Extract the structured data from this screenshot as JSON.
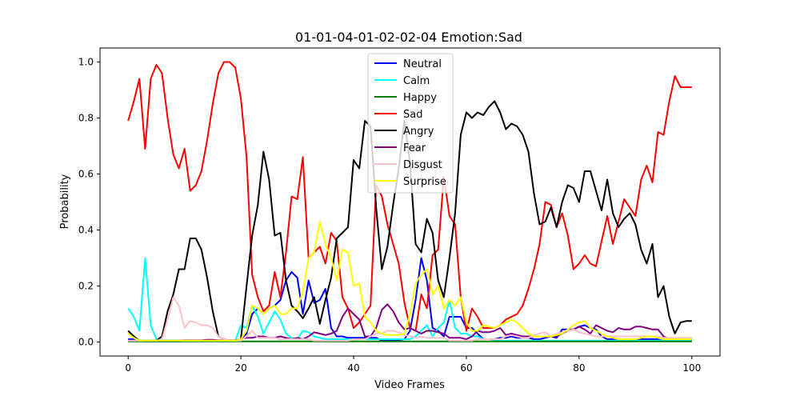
{
  "chart_data": {
    "type": "line",
    "title": "01-01-04-01-02-02-04 Emotion:Sad",
    "xlabel": "Video Frames",
    "ylabel": "Probability",
    "xlim": [
      -5,
      105
    ],
    "ylim": [
      -0.05,
      1.05
    ],
    "x_ticks": [
      0,
      20,
      40,
      60,
      80,
      100
    ],
    "x_tick_labels": [
      "0",
      "20",
      "40",
      "60",
      "80",
      "100"
    ],
    "y_ticks": [
      0.0,
      0.2,
      0.4,
      0.6,
      0.8,
      1.0
    ],
    "y_tick_labels": [
      "0.0",
      "0.2",
      "0.4",
      "0.6",
      "0.8",
      "1.0"
    ],
    "grid": false,
    "legend_position": "top-center",
    "x": [
      0,
      1,
      2,
      3,
      4,
      5,
      6,
      7,
      8,
      9,
      10,
      11,
      12,
      13,
      14,
      15,
      16,
      17,
      18,
      19,
      20,
      21,
      22,
      23,
      24,
      25,
      26,
      27,
      28,
      29,
      30,
      31,
      32,
      33,
      34,
      35,
      36,
      37,
      38,
      39,
      40,
      41,
      42,
      43,
      44,
      45,
      46,
      47,
      48,
      49,
      50,
      51,
      52,
      53,
      54,
      55,
      56,
      57,
      58,
      59,
      60,
      61,
      62,
      63,
      64,
      65,
      66,
      67,
      68,
      69,
      70,
      71,
      72,
      73,
      74,
      75,
      76,
      77,
      78,
      79,
      80,
      81,
      82,
      83,
      84,
      85,
      86,
      87,
      88,
      89,
      90,
      91,
      92,
      93,
      94,
      95,
      96,
      97,
      98,
      99,
      100
    ],
    "series": [
      {
        "name": "Neutral",
        "color": "#0000ff",
        "values": [
          0.01,
          0.01,
          0.005,
          0.002,
          0.002,
          0.002,
          0.002,
          0.002,
          0.002,
          0.002,
          0.003,
          0.003,
          0.003,
          0.003,
          0.003,
          0.003,
          0.003,
          0.003,
          0.003,
          0.005,
          0.01,
          0.03,
          0.1,
          0.12,
          0.1,
          0.12,
          0.13,
          0.15,
          0.22,
          0.25,
          0.23,
          0.1,
          0.22,
          0.14,
          0.15,
          0.19,
          0.05,
          0.02,
          0.02,
          0.015,
          0.015,
          0.015,
          0.015,
          0.015,
          0.015,
          0.005,
          0.005,
          0.006,
          0.007,
          0.01,
          0.04,
          0.15,
          0.3,
          0.22,
          0.05,
          0.04,
          0.02,
          0.09,
          0.09,
          0.09,
          0.05,
          0.05,
          0.03,
          0.01,
          0.01,
          0.01,
          0.015,
          0.015,
          0.02,
          0.015,
          0.015,
          0.015,
          0.01,
          0.01,
          0.015,
          0.02,
          0.015,
          0.045,
          0.045,
          0.045,
          0.055,
          0.06,
          0.05,
          0.045,
          0.02,
          0.01,
          0.01,
          0.01,
          0.01,
          0.01,
          0.01,
          0.01,
          0.01,
          0.01,
          0.01,
          0.005,
          0.005,
          0.005,
          0.005,
          0.005,
          0.005
        ]
      },
      {
        "name": "Calm",
        "color": "#00ffff",
        "values": [
          0.12,
          0.09,
          0.04,
          0.3,
          0.06,
          0.01,
          0.005,
          0.005,
          0.005,
          0.005,
          0.005,
          0.005,
          0.005,
          0.005,
          0.005,
          0.005,
          0.005,
          0.005,
          0.005,
          0.005,
          0.06,
          0.05,
          0.13,
          0.09,
          0.03,
          0.07,
          0.11,
          0.08,
          0.03,
          0.015,
          0.01,
          0.04,
          0.035,
          0.02,
          0.015,
          0.01,
          0.01,
          0.01,
          0.01,
          0.01,
          0.01,
          0.01,
          0.01,
          0.01,
          0.01,
          0.01,
          0.01,
          0.01,
          0.01,
          0.01,
          0.01,
          0.02,
          0.04,
          0.06,
          0.02,
          0.05,
          0.07,
          0.15,
          0.05,
          0.03,
          0.03,
          0.02,
          0.02,
          0.01,
          0.01,
          0.005,
          0.005,
          0.005,
          0.005,
          0.005,
          0.005,
          0.005,
          0.005,
          0.005,
          0.005,
          0.005,
          0.005,
          0.005,
          0.005,
          0.005,
          0.005,
          0.005,
          0.005,
          0.005,
          0.005,
          0.005,
          0.005,
          0.005,
          0.005,
          0.005,
          0.005,
          0.005,
          0.005,
          0.005,
          0.005,
          0.005,
          0.005,
          0.005,
          0.005,
          0.005,
          0.005
        ]
      },
      {
        "name": "Happy",
        "color": "#008000",
        "values": [
          0.002,
          0.002,
          0.002,
          0.002,
          0.002,
          0.002,
          0.002,
          0.002,
          0.002,
          0.002,
          0.002,
          0.002,
          0.002,
          0.002,
          0.002,
          0.002,
          0.002,
          0.002,
          0.002,
          0.002,
          0.002,
          0.002,
          0.002,
          0.002,
          0.002,
          0.002,
          0.002,
          0.002,
          0.002,
          0.002,
          0.002,
          0.002,
          0.002,
          0.002,
          0.002,
          0.002,
          0.002,
          0.002,
          0.002,
          0.002,
          0.002,
          0.002,
          0.002,
          0.002,
          0.002,
          0.002,
          0.002,
          0.002,
          0.002,
          0.002,
          0.002,
          0.002,
          0.002,
          0.002,
          0.002,
          0.002,
          0.002,
          0.002,
          0.002,
          0.002,
          0.002,
          0.002,
          0.002,
          0.002,
          0.002,
          0.002,
          0.002,
          0.002,
          0.002,
          0.002,
          0.002,
          0.002,
          0.002,
          0.002,
          0.002,
          0.002,
          0.002,
          0.002,
          0.002,
          0.002,
          0.002,
          0.002,
          0.002,
          0.002,
          0.002,
          0.002,
          0.002,
          0.002,
          0.002,
          0.002,
          0.002,
          0.002,
          0.002,
          0.002,
          0.002,
          0.002,
          0.002,
          0.002,
          0.002,
          0.002,
          0.002
        ]
      },
      {
        "name": "Sad",
        "color": "#ff0000",
        "values": [
          0.79,
          0.86,
          0.94,
          0.69,
          0.94,
          0.99,
          0.96,
          0.8,
          0.67,
          0.62,
          0.69,
          0.54,
          0.56,
          0.61,
          0.72,
          0.85,
          0.96,
          1.0,
          1.0,
          0.98,
          0.87,
          0.66,
          0.24,
          0.16,
          0.11,
          0.13,
          0.25,
          0.16,
          0.32,
          0.52,
          0.51,
          0.66,
          0.3,
          0.32,
          0.34,
          0.28,
          0.39,
          0.36,
          0.16,
          0.12,
          0.05,
          0.07,
          0.1,
          0.13,
          0.56,
          0.52,
          0.42,
          0.35,
          0.28,
          0.14,
          0.05,
          0.04,
          0.17,
          0.12,
          0.31,
          0.33,
          0.59,
          0.45,
          0.42,
          0.16,
          0.04,
          0.12,
          0.09,
          0.05,
          0.05,
          0.05,
          0.06,
          0.08,
          0.09,
          0.1,
          0.13,
          0.19,
          0.26,
          0.35,
          0.5,
          0.49,
          0.41,
          0.46,
          0.38,
          0.26,
          0.28,
          0.31,
          0.28,
          0.27,
          0.36,
          0.45,
          0.35,
          0.43,
          0.51,
          0.48,
          0.45,
          0.58,
          0.63,
          0.57,
          0.75,
          0.74,
          0.86,
          0.95,
          0.91,
          0.91,
          0.91
        ]
      },
      {
        "name": "Angry",
        "color": "#000000",
        "values": [
          0.04,
          0.02,
          0.005,
          0.005,
          0.005,
          0.005,
          0.02,
          0.11,
          0.17,
          0.26,
          0.26,
          0.37,
          0.37,
          0.33,
          0.23,
          0.11,
          0.02,
          0.01,
          0.005,
          0.005,
          0.01,
          0.2,
          0.38,
          0.49,
          0.68,
          0.58,
          0.38,
          0.39,
          0.22,
          0.13,
          0.11,
          0.085,
          0.12,
          0.16,
          0.065,
          0.15,
          0.23,
          0.37,
          0.39,
          0.41,
          0.65,
          0.62,
          0.79,
          0.77,
          0.48,
          0.26,
          0.34,
          0.49,
          0.62,
          0.79,
          0.64,
          0.35,
          0.32,
          0.44,
          0.39,
          0.22,
          0.16,
          0.3,
          0.46,
          0.74,
          0.82,
          0.8,
          0.82,
          0.81,
          0.84,
          0.86,
          0.82,
          0.76,
          0.78,
          0.77,
          0.74,
          0.68,
          0.53,
          0.42,
          0.43,
          0.48,
          0.41,
          0.5,
          0.56,
          0.55,
          0.5,
          0.61,
          0.61,
          0.54,
          0.47,
          0.58,
          0.46,
          0.41,
          0.44,
          0.46,
          0.42,
          0.33,
          0.28,
          0.35,
          0.16,
          0.2,
          0.09,
          0.03,
          0.07,
          0.075,
          0.075
        ]
      },
      {
        "name": "Fear",
        "color": "#800080",
        "values": [
          0.005,
          0.005,
          0.005,
          0.005,
          0.005,
          0.005,
          0.005,
          0.005,
          0.005,
          0.005,
          0.006,
          0.006,
          0.006,
          0.006,
          0.008,
          0.008,
          0.006,
          0.006,
          0.006,
          0.006,
          0.01,
          0.015,
          0.015,
          0.02,
          0.02,
          0.015,
          0.015,
          0.02,
          0.015,
          0.01,
          0.015,
          0.01,
          0.02,
          0.035,
          0.03,
          0.025,
          0.03,
          0.04,
          0.09,
          0.12,
          0.1,
          0.08,
          0.02,
          0.02,
          0.05,
          0.115,
          0.135,
          0.11,
          0.07,
          0.045,
          0.05,
          0.04,
          0.03,
          0.04,
          0.04,
          0.035,
          0.03,
          0.015,
          0.015,
          0.015,
          0.01,
          0.02,
          0.04,
          0.035,
          0.035,
          0.04,
          0.05,
          0.025,
          0.03,
          0.025,
          0.02,
          0.02,
          0.02,
          0.02,
          0.02,
          0.02,
          0.02,
          0.03,
          0.04,
          0.045,
          0.055,
          0.045,
          0.03,
          0.06,
          0.05,
          0.04,
          0.035,
          0.05,
          0.045,
          0.045,
          0.055,
          0.055,
          0.05,
          0.045,
          0.045,
          0.02,
          0.01,
          0.01,
          0.01,
          0.01,
          0.01
        ]
      },
      {
        "name": "Disgust",
        "color": "#ffc0cb",
        "values": [
          0.005,
          0.005,
          0.005,
          0.005,
          0.005,
          0.005,
          0.01,
          0.08,
          0.16,
          0.13,
          0.05,
          0.075,
          0.07,
          0.06,
          0.06,
          0.05,
          0.02,
          0.01,
          0.005,
          0.005,
          0.005,
          0.02,
          0.04,
          0.015,
          0.015,
          0.015,
          0.015,
          0.01,
          0.01,
          0.01,
          0.01,
          0.01,
          0.01,
          0.005,
          0.005,
          0.005,
          0.005,
          0.005,
          0.005,
          0.005,
          0.01,
          0.01,
          0.01,
          0.02,
          0.03,
          0.03,
          0.04,
          0.04,
          0.035,
          0.025,
          0.02,
          0.015,
          0.02,
          0.015,
          0.015,
          0.015,
          0.015,
          0.005,
          0.005,
          0.005,
          0.005,
          0.005,
          0.01,
          0.01,
          0.01,
          0.01,
          0.01,
          0.02,
          0.025,
          0.02,
          0.015,
          0.015,
          0.025,
          0.03,
          0.035,
          0.02,
          0.03,
          0.035,
          0.04,
          0.045,
          0.035,
          0.03,
          0.025,
          0.02,
          0.02,
          0.02,
          0.02,
          0.02,
          0.02,
          0.02,
          0.02,
          0.02,
          0.02,
          0.02,
          0.02,
          0.015,
          0.015,
          0.015,
          0.015,
          0.015,
          0.015
        ]
      },
      {
        "name": "Surprise",
        "color": "#ffff00",
        "values": [
          0.03,
          0.015,
          0.005,
          0.005,
          0.005,
          0.005,
          0.005,
          0.005,
          0.005,
          0.005,
          0.005,
          0.005,
          0.005,
          0.005,
          0.005,
          0.005,
          0.005,
          0.005,
          0.005,
          0.005,
          0.01,
          0.04,
          0.13,
          0.12,
          0.1,
          0.12,
          0.13,
          0.1,
          0.1,
          0.12,
          0.12,
          0.18,
          0.3,
          0.32,
          0.43,
          0.35,
          0.3,
          0.22,
          0.33,
          0.32,
          0.2,
          0.21,
          0.09,
          0.07,
          0.04,
          0.03,
          0.025,
          0.025,
          0.025,
          0.03,
          0.1,
          0.21,
          0.24,
          0.26,
          0.17,
          0.2,
          0.12,
          0.15,
          0.13,
          0.16,
          0.07,
          0.04,
          0.04,
          0.06,
          0.055,
          0.05,
          0.06,
          0.07,
          0.08,
          0.07,
          0.05,
          0.03,
          0.02,
          0.02,
          0.02,
          0.02,
          0.025,
          0.03,
          0.045,
          0.06,
          0.07,
          0.075,
          0.05,
          0.04,
          0.03,
          0.02,
          0.015,
          0.01,
          0.01,
          0.01,
          0.01,
          0.015,
          0.02,
          0.02,
          0.015,
          0.01,
          0.01,
          0.01,
          0.01,
          0.01,
          0.01
        ]
      }
    ]
  }
}
